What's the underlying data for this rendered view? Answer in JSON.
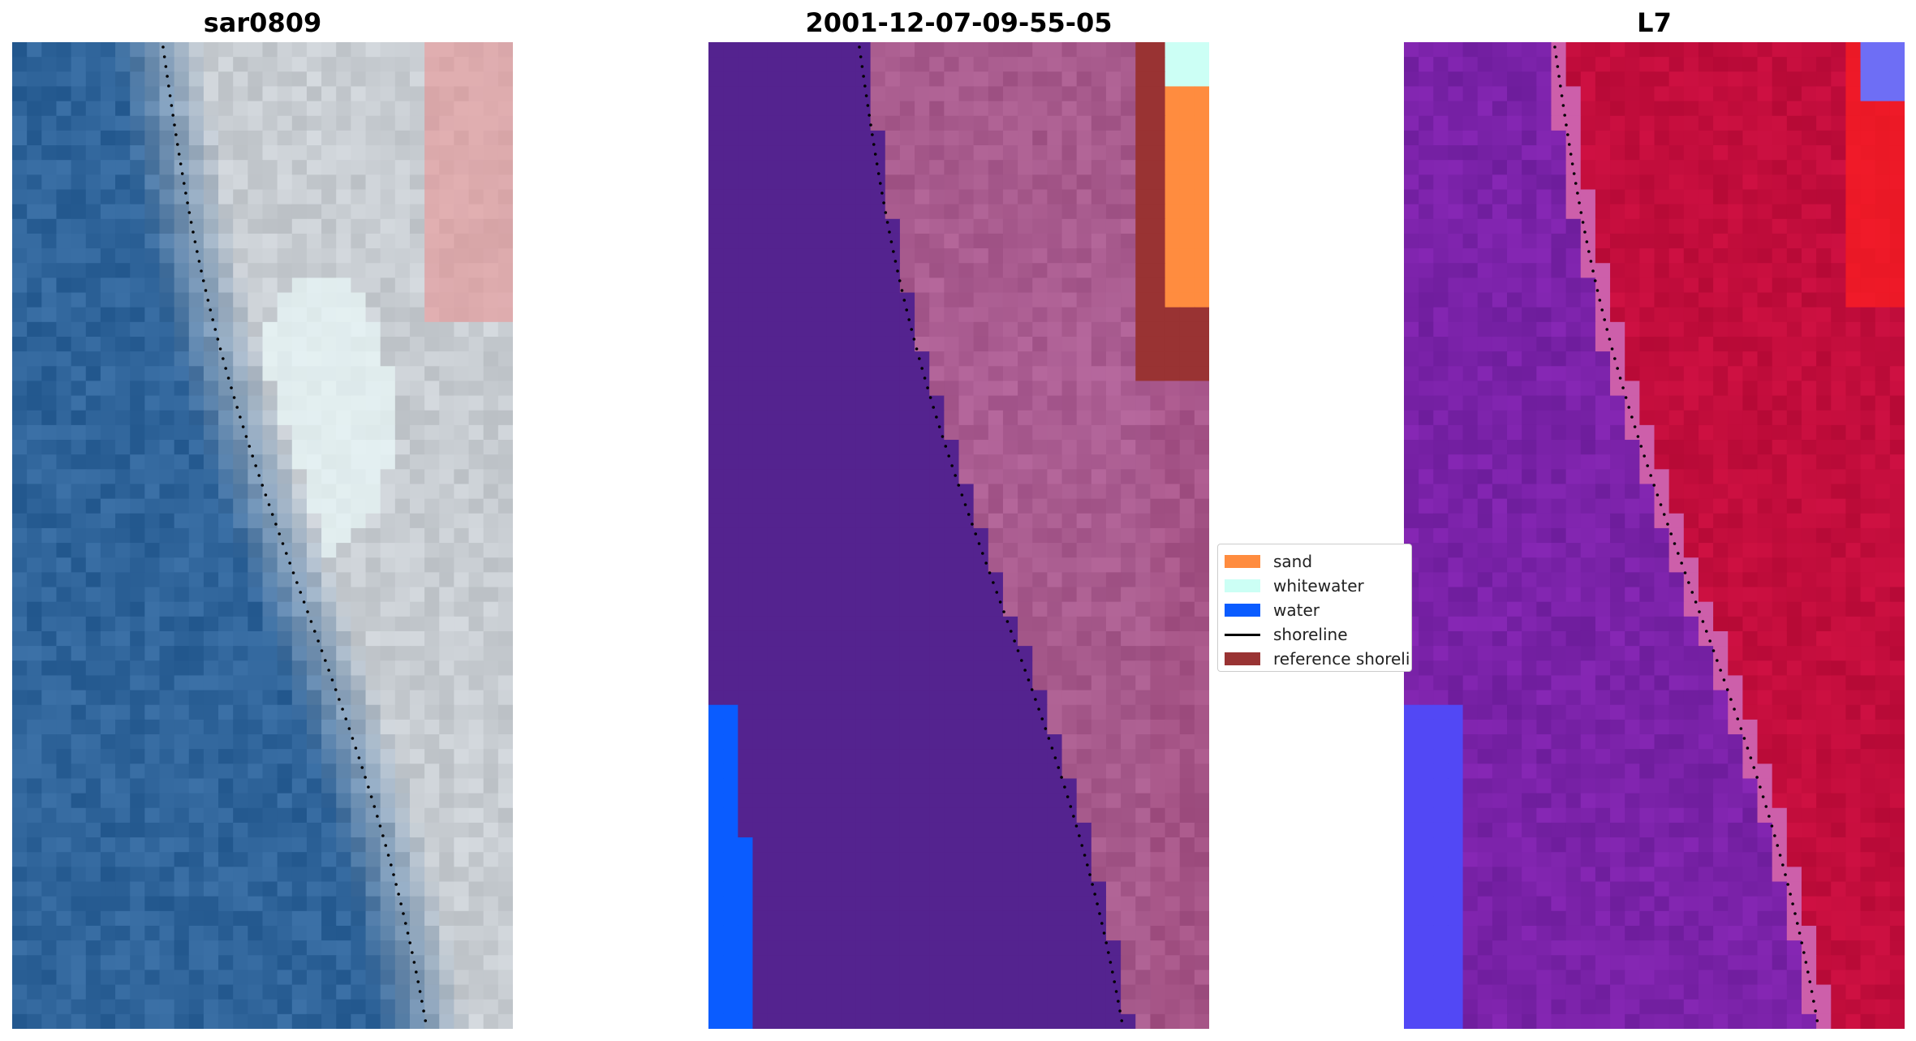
{
  "panels": [
    {
      "title": "sar0809"
    },
    {
      "title": "2001-12-07-09-55-05"
    },
    {
      "title": "L7"
    }
  ],
  "legend": {
    "items": [
      {
        "label": "sand",
        "color": "#ff8c3f",
        "kind": "patch"
      },
      {
        "label": "whitewater",
        "color": "#ccfff5",
        "kind": "patch"
      },
      {
        "label": "water",
        "color": "#0a5cff",
        "kind": "patch"
      },
      {
        "label": "shoreline",
        "color": "#000000",
        "kind": "line"
      },
      {
        "label": "reference shoreline",
        "color": "#993333",
        "kind": "patch"
      }
    ]
  },
  "colors": {
    "sea_rgb": "#2f649a",
    "beach_rgb": "#c8cdd2",
    "class_background": "#54238f",
    "class_beach": "#a75a8c",
    "index_water": "#7a22a8",
    "index_land": "#c20d3c"
  }
}
